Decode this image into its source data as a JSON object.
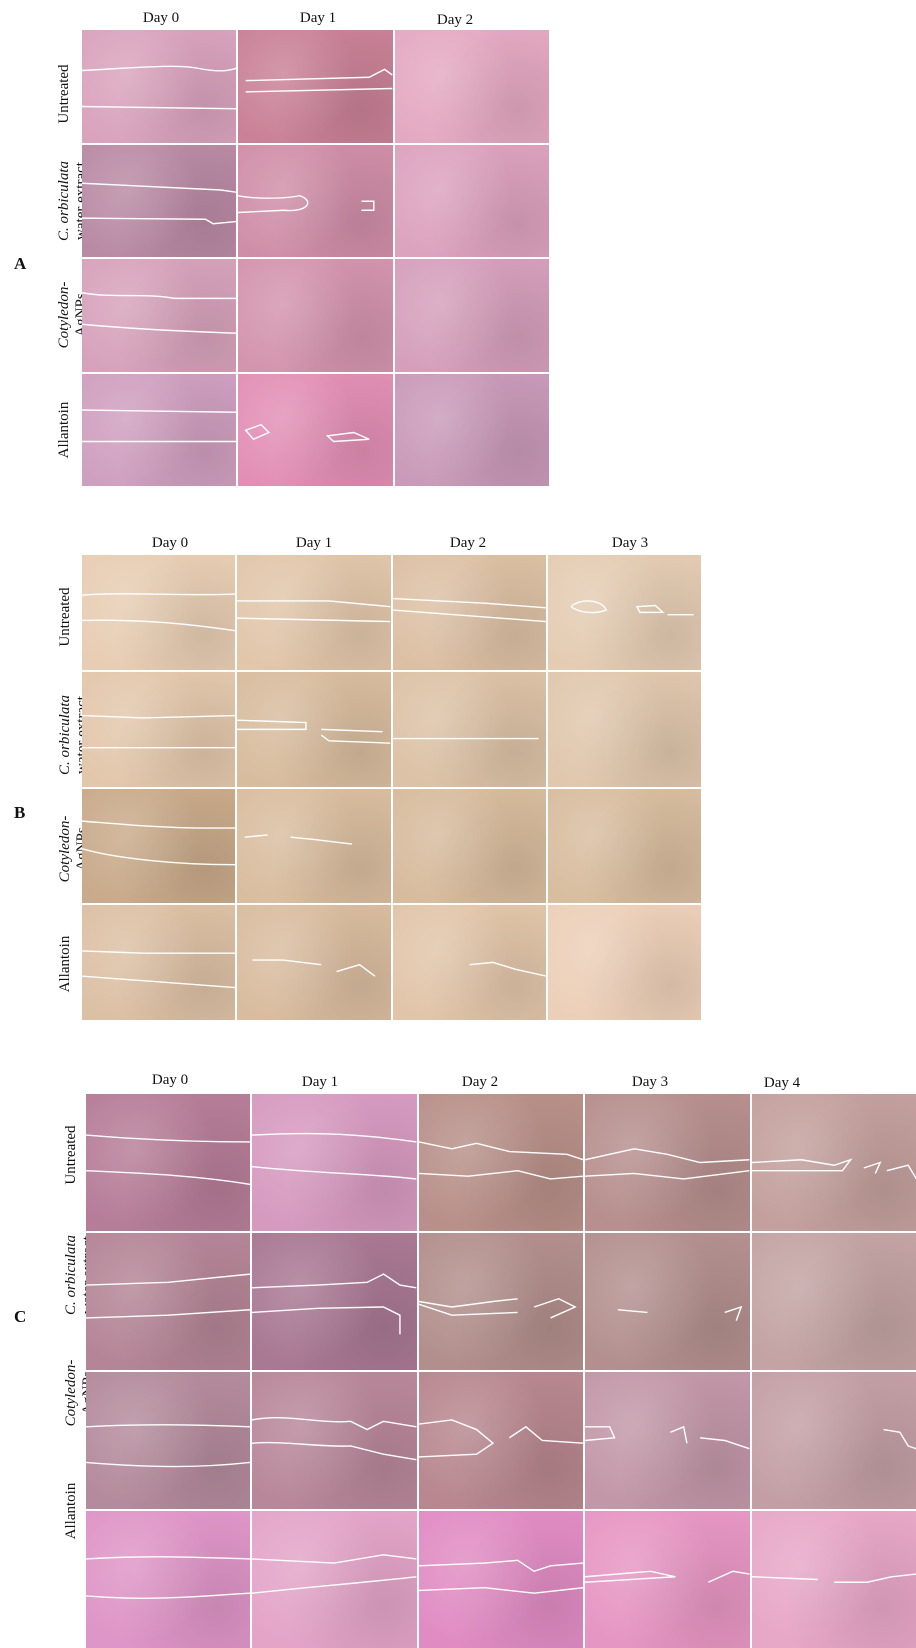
{
  "panels": [
    {
      "id": "A",
      "letter": "A",
      "columns": [
        "Day 0",
        "Day 1",
        "Day 2"
      ],
      "rows": [
        {
          "line1_italic": "",
          "line2": "Untreated"
        },
        {
          "line1_italic": "C. orbiculata",
          "line2": "water extract"
        },
        {
          "line1_italic": "Cotyledon-",
          "line2": "AgNPs"
        },
        {
          "line1_italic": "",
          "line2": "Allantoin"
        }
      ],
      "tile_colors": [
        [
          "#d9a3bd",
          "#c98196",
          "#e4a9c2"
        ],
        [
          "#b98aa4",
          "#cf8ea7",
          "#dca2be"
        ],
        [
          "#d6a2bb",
          "#d394ae",
          "#d59fbb"
        ],
        [
          "#cf9fbf",
          "#e28fb5",
          "#c99ab9"
        ]
      ]
    },
    {
      "id": "B",
      "letter": "B",
      "columns": [
        "Day 0",
        "Day 1",
        "Day 2",
        "Day 3"
      ],
      "rows": [
        {
          "line1_italic": "",
          "line2": "Untreated"
        },
        {
          "line1_italic": "C. orbiculata",
          "line2": "water extract"
        },
        {
          "line1_italic": "Cotyledon-",
          "line2": "AgNPs"
        },
        {
          "line1_italic": "",
          "line2": "Allantoin"
        }
      ],
      "tile_colors": [
        [
          "#e7cdb3",
          "#e1c6aa",
          "#dcc0a4",
          "#e4ccb3"
        ],
        [
          "#e2c7ab",
          "#d8bc9e",
          "#dcc2a6",
          "#e0c7ad"
        ],
        [
          "#c9aa8a",
          "#d9bd9f",
          "#d7bb9d",
          "#d8bd9f"
        ],
        [
          "#dcc0a4",
          "#d9bc9f",
          "#e1c5a9",
          "#eccfb8"
        ]
      ]
    },
    {
      "id": "C",
      "letter": "C",
      "columns": [
        "Day 0",
        "Day 1",
        "Day 2",
        "Day 3",
        "Day 4"
      ],
      "rows": [
        {
          "line1_italic": "",
          "line2": "Untreated"
        },
        {
          "line1_italic": "C. orbiculata",
          "line2": "water extract"
        },
        {
          "line1_italic": "Cotyledon-",
          "line2": "AgNPs"
        },
        {
          "line1_italic": "",
          "line2": "Allantoin"
        }
      ],
      "tile_colors": [
        [
          "#b67d98",
          "#d69ac0",
          "#b89089",
          "#b68f8e",
          "#c3a09d"
        ],
        [
          "#b48596",
          "#a97893",
          "#b28f8c",
          "#b3908f",
          "#c3a3a3"
        ],
        [
          "#b48b9c",
          "#b8879a",
          "#b8878f",
          "#c297a7",
          "#c39fa5"
        ],
        [
          "#de95c7",
          "#e3a4c8",
          "#e08cc3",
          "#e696c3",
          "#e7a7c7"
        ]
      ]
    }
  ]
}
